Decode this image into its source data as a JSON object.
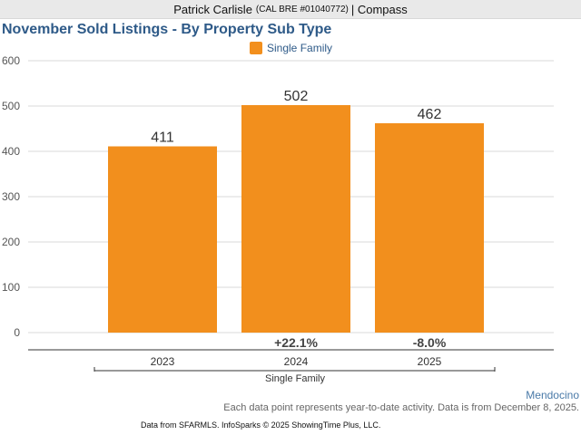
{
  "header": {
    "agent_name": "Patrick Carlisle",
    "agent_license": "(CAL BRE #01040772)",
    "company": "| Compass"
  },
  "colors": {
    "series": "#f28f1d",
    "title": "#2e5a88",
    "grid": "#d9d9d9",
    "axis": "#333333"
  },
  "chart_data": {
    "type": "bar",
    "title": "November Sold Listings - By Property Sub Type",
    "categories": [
      "2023",
      "2024",
      "2025"
    ],
    "group_label": "Single Family",
    "series": [
      {
        "name": "Single Family",
        "values": [
          411,
          502,
          462
        ]
      }
    ],
    "change_labels": [
      "",
      "+22.1%",
      "-8.0%"
    ],
    "yticks": [
      "0",
      "100",
      "200",
      "300",
      "400",
      "500",
      "600"
    ],
    "ylim": [
      0,
      600
    ],
    "grid": true,
    "legend_position": "top-center",
    "xlabel": "",
    "ylabel": ""
  },
  "footer": {
    "region": "Mendocino",
    "note": "Each data point represents year-to-date activity. Data is from December 8, 2025.",
    "source": "Data from SFARMLS. InfoSparks © 2025 ShowingTime Plus, LLC."
  }
}
